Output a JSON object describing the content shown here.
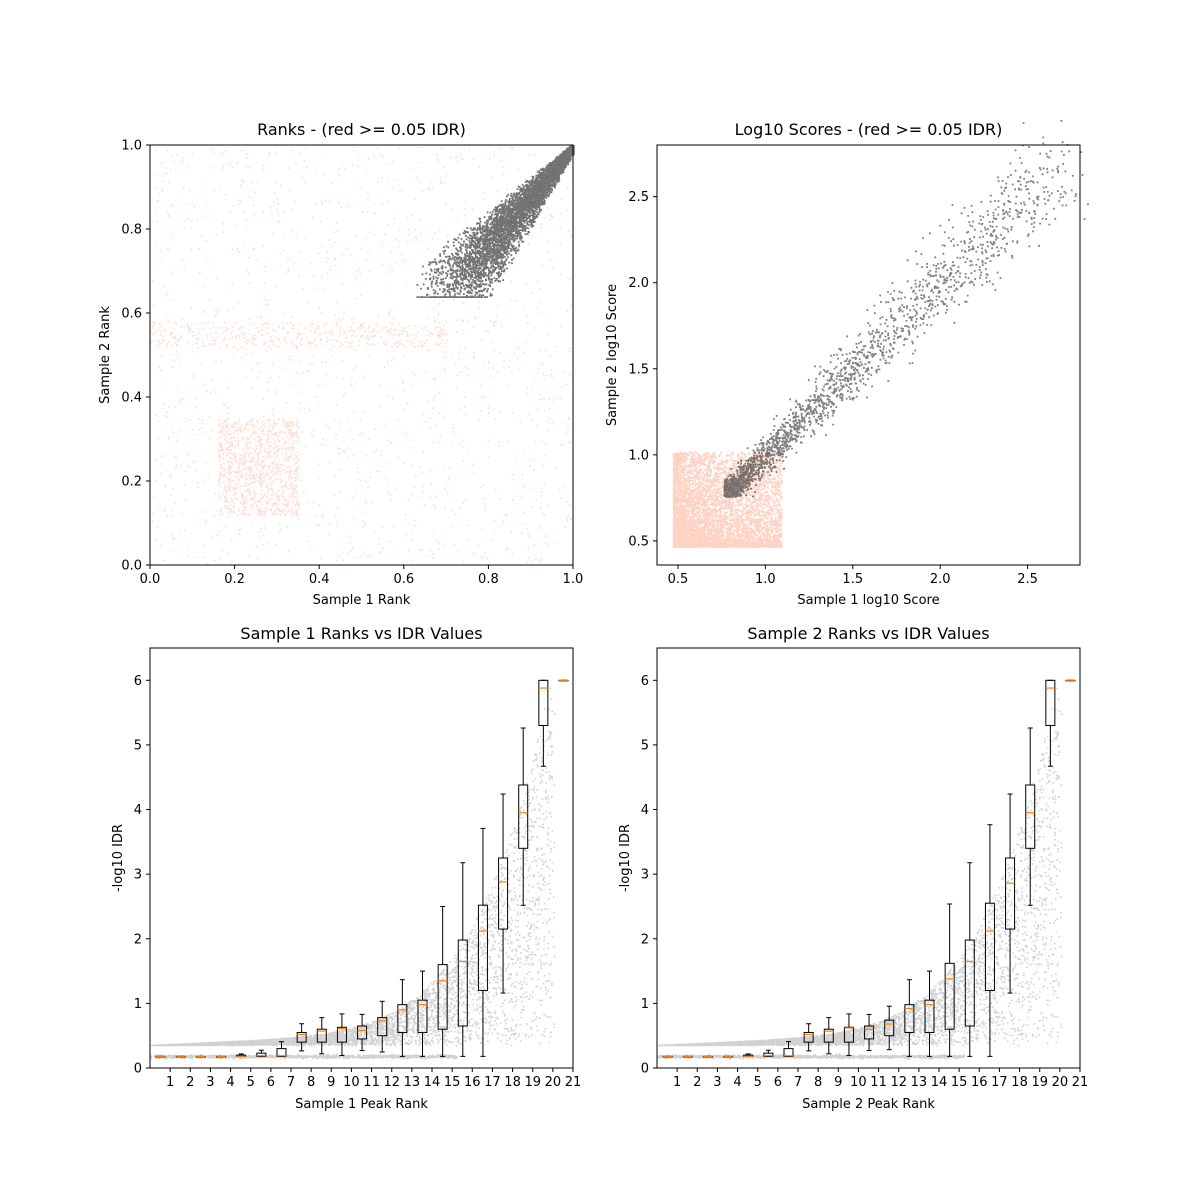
{
  "chart_data": [
    {
      "type": "scatter",
      "title": "Ranks - (red >= 0.05 IDR)",
      "xlabel": "Sample 1 Rank",
      "ylabel": "Sample 2 Rank",
      "xlim": [
        0.0,
        1.0
      ],
      "ylim": [
        0.0,
        1.0
      ],
      "xticks": [
        "0.0",
        "0.2",
        "0.4",
        "0.6",
        "0.8",
        "1.0"
      ],
      "yticks": [
        "0.0",
        "0.2",
        "0.4",
        "0.6",
        "0.8",
        "1.0"
      ],
      "series": [
        {
          "color": "#ff9b7a",
          "description_values": "uniform cloud over [0,1]x[0,1] with block structure"
        },
        {
          "color": "#000000",
          "description_values": "dense cluster in upper-right corner from ~(0.65,0.65) to (1.0,1.0)"
        }
      ]
    },
    {
      "type": "scatter",
      "title": "Log10 Scores - (red >= 0.05 IDR)",
      "xlabel": "Sample 1 log10 Score",
      "ylabel": "Sample 2 log10 Score",
      "xlim": [
        0.38,
        2.8
      ],
      "ylim": [
        0.36,
        2.8
      ],
      "xticks": [
        "0.5",
        "1.0",
        "1.5",
        "2.0",
        "2.5"
      ],
      "yticks": [
        "0.5",
        "1.0",
        "1.5",
        "2.0",
        "2.5"
      ],
      "series": [
        {
          "color": "#ff9b7a",
          "description_values": "block from 0.47 to ~1.1 on both axes"
        },
        {
          "color": "#000000",
          "description_values": "diagonal band from ~(0.78,0.78) to ~(2.7,2.7)"
        }
      ]
    },
    {
      "type": "scatter",
      "title": "Sample 1 Ranks vs IDR Values",
      "xlabel": "Sample 1 Peak Rank",
      "ylabel": "-log10 IDR",
      "xlim": [
        0,
        21
      ],
      "ylim": [
        0,
        6.5
      ],
      "xticks": [
        "1",
        "2",
        "3",
        "4",
        "5",
        "6",
        "7",
        "8",
        "9",
        "10",
        "11",
        "12",
        "13",
        "14",
        "15",
        "16",
        "17",
        "18",
        "19",
        "20",
        "21"
      ],
      "yticks": [
        "0",
        "1",
        "2",
        "3",
        "4",
        "5",
        "6"
      ],
      "medians": [
        0.18,
        0.18,
        0.18,
        0.18,
        0.18,
        0.19,
        0.19,
        0.52,
        0.57,
        0.61,
        0.58,
        0.73,
        0.9,
        0.98,
        1.35,
        1.65,
        2.12,
        2.88,
        3.95,
        5.88,
        6.0
      ],
      "q1": [
        0.18,
        0.18,
        0.18,
        0.18,
        0.18,
        0.18,
        0.18,
        0.4,
        0.4,
        0.4,
        0.45,
        0.5,
        0.55,
        0.55,
        0.6,
        0.65,
        1.2,
        2.15,
        3.4,
        5.3,
        6.0
      ],
      "q3": [
        0.18,
        0.18,
        0.18,
        0.18,
        0.2,
        0.23,
        0.3,
        0.55,
        0.6,
        0.63,
        0.65,
        0.78,
        0.98,
        1.05,
        1.6,
        1.98,
        2.52,
        3.25,
        4.38,
        6.0,
        6.0
      ]
    },
    {
      "type": "scatter",
      "title": "Sample 2 Ranks vs IDR Values",
      "xlabel": "Sample 2 Peak Rank",
      "ylabel": "-log10 IDR",
      "xlim": [
        0,
        21
      ],
      "ylim": [
        0,
        6.5
      ],
      "xticks": [
        "1",
        "2",
        "3",
        "4",
        "5",
        "6",
        "7",
        "8",
        "9",
        "10",
        "11",
        "12",
        "13",
        "14",
        "15",
        "16",
        "17",
        "18",
        "19",
        "20",
        "21"
      ],
      "yticks": [
        "0",
        "1",
        "2",
        "3",
        "4",
        "5",
        "6"
      ],
      "medians": [
        0.18,
        0.18,
        0.18,
        0.18,
        0.18,
        0.19,
        0.19,
        0.52,
        0.57,
        0.62,
        0.6,
        0.68,
        0.92,
        0.98,
        1.38,
        1.65,
        2.12,
        2.86,
        3.95,
        5.88,
        6.0
      ],
      "q1": [
        0.18,
        0.18,
        0.18,
        0.18,
        0.18,
        0.18,
        0.18,
        0.4,
        0.4,
        0.4,
        0.45,
        0.5,
        0.55,
        0.55,
        0.6,
        0.65,
        1.2,
        2.15,
        3.4,
        5.3,
        6.0
      ],
      "q3": [
        0.18,
        0.18,
        0.18,
        0.18,
        0.2,
        0.23,
        0.3,
        0.55,
        0.6,
        0.63,
        0.65,
        0.74,
        0.98,
        1.05,
        1.62,
        1.98,
        2.55,
        3.25,
        4.38,
        6.0,
        6.0
      ]
    }
  ]
}
